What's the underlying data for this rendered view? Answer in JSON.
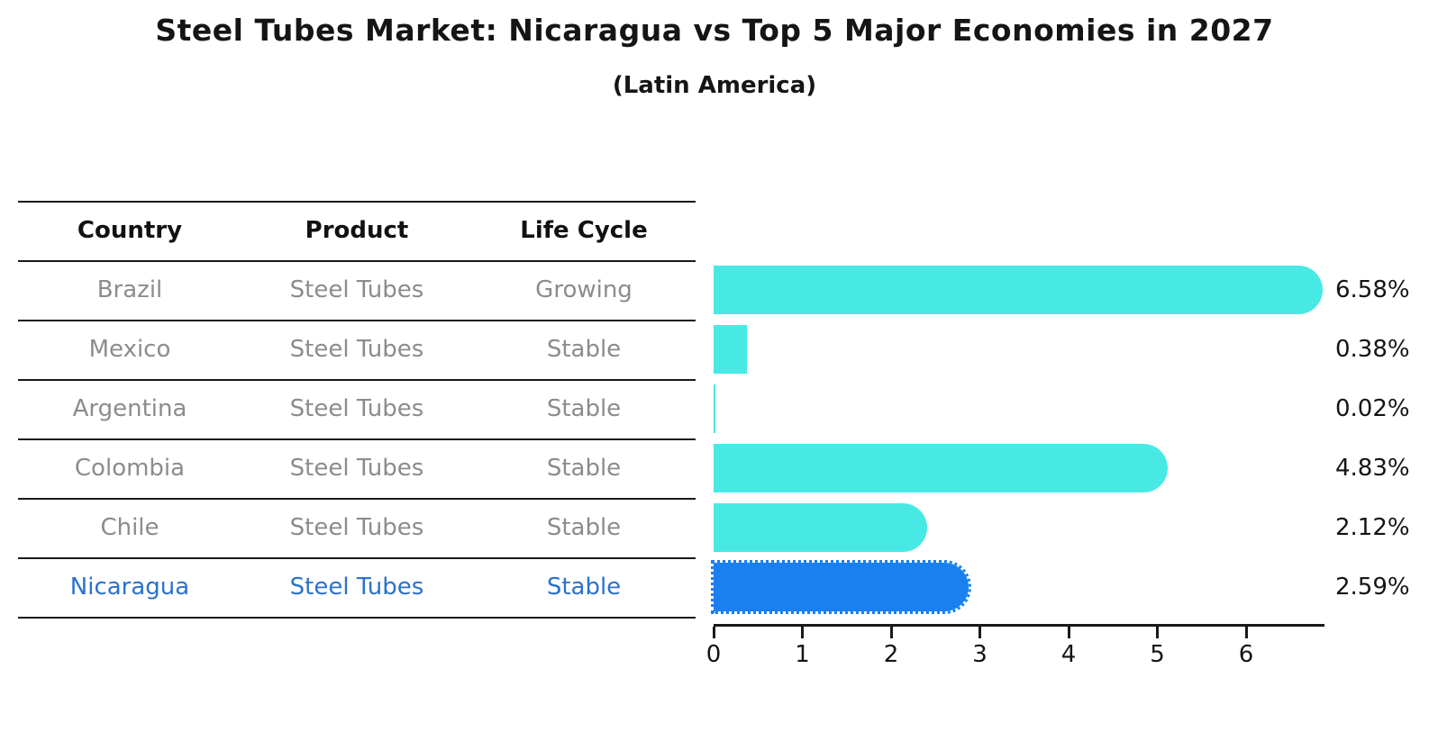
{
  "chart_data": {
    "type": "bar",
    "orientation": "horizontal",
    "title": "Steel Tubes Market: Nicaragua vs Top 5 Major Economies in 2027",
    "subtitle": "(Latin America)",
    "categories": [
      "Brazil",
      "Mexico",
      "Argentina",
      "Colombia",
      "Chile",
      "Nicaragua"
    ],
    "values": [
      6.58,
      0.38,
      0.02,
      4.83,
      2.12,
      2.59
    ],
    "value_labels": [
      "6.58%",
      "0.38%",
      "0.02%",
      "4.83%",
      "2.12%",
      "2.59%"
    ],
    "highlight_index": 5,
    "xticks": [
      0,
      1,
      2,
      3,
      4,
      5,
      6
    ],
    "xlim": [
      0,
      6.88
    ],
    "xlabel": "",
    "ylabel": "",
    "grid": false,
    "legend": false
  },
  "table": {
    "headers": [
      "Country",
      "Product",
      "Life Cycle"
    ],
    "rows": [
      {
        "country": "Brazil",
        "product": "Steel Tubes",
        "life_cycle": "Growing",
        "highlighted": false
      },
      {
        "country": "Mexico",
        "product": "Steel Tubes",
        "life_cycle": "Stable",
        "highlighted": false
      },
      {
        "country": "Argentina",
        "product": "Steel Tubes",
        "life_cycle": "Stable",
        "highlighted": false
      },
      {
        "country": "Colombia",
        "product": "Steel Tubes",
        "life_cycle": "Stable",
        "highlighted": false
      },
      {
        "country": "Chile",
        "product": "Steel Tubes",
        "life_cycle": "Stable",
        "highlighted": false
      },
      {
        "country": "Nicaragua",
        "product": "Steel Tubes",
        "life_cycle": "Stable",
        "highlighted": true
      }
    ]
  },
  "colors": {
    "bar_default": "#48E9E4",
    "bar_highlight": "#1A80F0",
    "highlight_text": "#2B72CC",
    "table_text": "#8C8C8C",
    "header_text": "#111111",
    "axis": "#1A1A1A"
  }
}
